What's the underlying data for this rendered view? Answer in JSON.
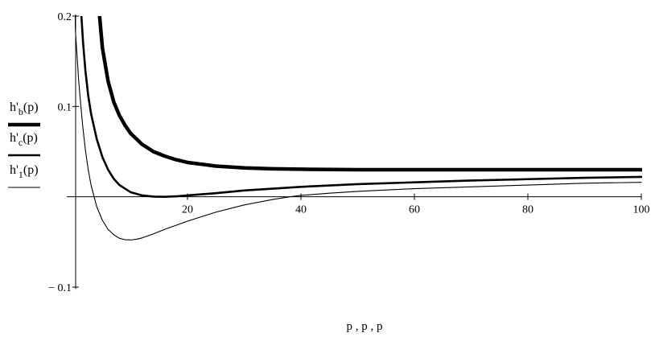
{
  "chart_data": {
    "type": "line",
    "xlabel": "p , p , p",
    "xlim": [
      0,
      100
    ],
    "ylim": [
      -0.1,
      0.2
    ],
    "x_ticks": [
      20,
      40,
      60,
      80,
      100
    ],
    "x_tick_labels": [
      "20",
      "40",
      "60",
      "80",
      "100"
    ],
    "y_ticks": [
      0.2,
      0.1,
      -0.1
    ],
    "y_tick_labels": [
      "0.2",
      "0.1",
      "− 0.1"
    ],
    "grid": false,
    "legend": "left, stacked vertically beside the y-axis",
    "series": [
      {
        "name": "h'b(p)",
        "legend_main": "h'",
        "legend_sub": "b",
        "legend_tail": "(p)",
        "stroke": "heavy",
        "color": "#000000",
        "x": [
          4.5,
          5,
          6,
          7,
          8,
          9,
          10,
          12,
          14,
          16,
          18,
          20,
          25,
          30,
          35,
          40,
          50,
          60,
          70,
          80,
          90,
          100
        ],
        "y": [
          0.2,
          0.165,
          0.128,
          0.105,
          0.09,
          0.079,
          0.07,
          0.058,
          0.05,
          0.045,
          0.041,
          0.038,
          0.034,
          0.032,
          0.031,
          0.0305,
          0.03,
          0.03,
          0.03,
          0.03,
          0.03,
          0.03
        ]
      },
      {
        "name": "h'c(p)",
        "legend_main": "h'",
        "legend_sub": "c",
        "legend_tail": "(p)",
        "stroke": "medium",
        "color": "#000000",
        "x": [
          1.3,
          1.6,
          2,
          2.5,
          3,
          4,
          5,
          6,
          7,
          8,
          10,
          12,
          14,
          16,
          18,
          20,
          25,
          30,
          40,
          50,
          60,
          70,
          80,
          90,
          100
        ],
        "y": [
          0.2,
          0.17,
          0.14,
          0.112,
          0.092,
          0.064,
          0.044,
          0.03,
          0.02,
          0.013,
          0.005,
          0.0015,
          0.0002,
          0.0,
          0.0005,
          0.0015,
          0.004,
          0.007,
          0.011,
          0.014,
          0.016,
          0.018,
          0.0195,
          0.021,
          0.022
        ]
      },
      {
        "name": "h'1(p)",
        "legend_main": "h'",
        "legend_sub": "1",
        "legend_tail": "(p)",
        "stroke": "thin",
        "color": "#000000",
        "x": [
          0.15,
          0.3,
          0.5,
          0.8,
          1,
          1.5,
          2,
          2.5,
          3,
          4,
          5,
          6,
          7,
          8,
          9,
          10,
          11,
          12,
          14,
          16,
          20,
          25,
          30,
          35,
          38,
          40,
          45,
          50,
          60,
          70,
          80,
          90,
          100
        ],
        "y": [
          0.2,
          0.178,
          0.16,
          0.13,
          0.115,
          0.08,
          0.052,
          0.03,
          0.013,
          -0.011,
          -0.026,
          -0.036,
          -0.042,
          -0.046,
          -0.0475,
          -0.0478,
          -0.047,
          -0.0455,
          -0.041,
          -0.036,
          -0.027,
          -0.017,
          -0.009,
          -0.003,
          0.0,
          0.0015,
          0.004,
          0.006,
          0.009,
          0.011,
          0.013,
          0.015,
          0.016
        ]
      }
    ]
  }
}
